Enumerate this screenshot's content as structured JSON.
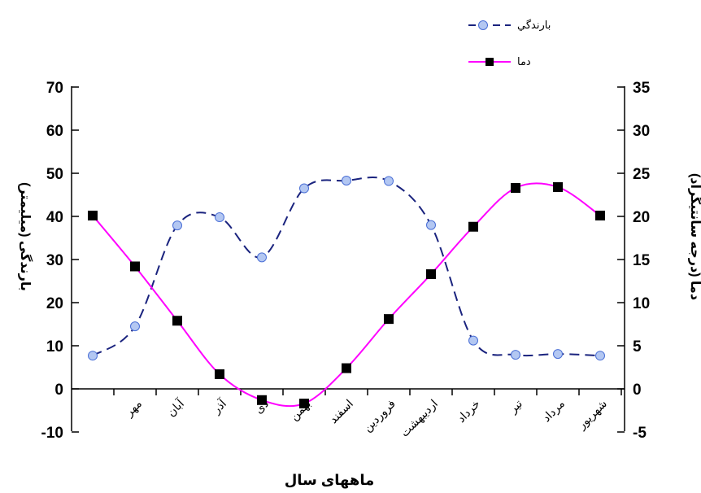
{
  "chart_data": {
    "type": "line",
    "categories": [
      "",
      "مهر",
      "آبان",
      "آذر",
      "دی",
      "بهمن",
      "اسفند",
      "فروردین",
      "اردیبهشت",
      "خرداد",
      "تیر",
      "مرداد",
      "شهریور"
    ],
    "xlabel": "ماههای سال",
    "y_left": {
      "label": "بارندگی (میلیمتر)",
      "ylim": [
        -10,
        70
      ],
      "ticks": [
        -10,
        0,
        10,
        20,
        30,
        40,
        50,
        60,
        70
      ]
    },
    "y_right": {
      "label": "دما (درجه سانتیگراد)",
      "ylim": [
        -5,
        35
      ],
      "ticks": [
        -5,
        0,
        5,
        10,
        15,
        20,
        25,
        30,
        35
      ]
    },
    "series": [
      {
        "name": "بارندگي",
        "axis": "left",
        "color": "#1a237e",
        "marker_fill": "#b3c7f2",
        "line_style": "dashed",
        "values": [
          7.7,
          14.5,
          37.9,
          39.8,
          30.5,
          46.5,
          48.3,
          48.2,
          38.0,
          11.2,
          7.9,
          8.1,
          7.7
        ]
      },
      {
        "name": "دما",
        "axis": "right",
        "color": "#ff00ff",
        "marker_fill": "#000000",
        "line_style": "solid",
        "values": [
          20.1,
          14.2,
          7.9,
          1.7,
          -1.3,
          -1.7,
          2.4,
          8.1,
          13.3,
          18.8,
          23.3,
          23.4,
          20.1
        ]
      }
    ],
    "legend": "top-right",
    "grid": false
  }
}
